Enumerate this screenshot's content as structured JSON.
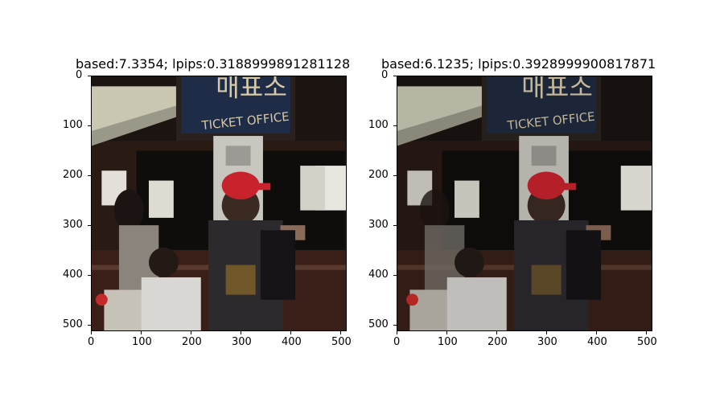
{
  "panels": [
    {
      "title": "based:7.3354; lpips:0.3188999891281128",
      "sign_text": "TICKET OFFICE",
      "sign_hangul": "매표소",
      "x_ticks": [
        "0",
        "100",
        "200",
        "300",
        "400",
        "500"
      ],
      "y_ticks": [
        "0",
        "100",
        "200",
        "300",
        "400",
        "500"
      ]
    },
    {
      "title": "based:6.1235; lpips:0.3928999900817871",
      "sign_text": "TICKET OFFICE",
      "sign_hangul": "매표소",
      "x_ticks": [
        "0",
        "100",
        "200",
        "300",
        "400",
        "500"
      ],
      "y_ticks": [
        "0",
        "100",
        "200",
        "300",
        "400",
        "500"
      ]
    }
  ]
}
